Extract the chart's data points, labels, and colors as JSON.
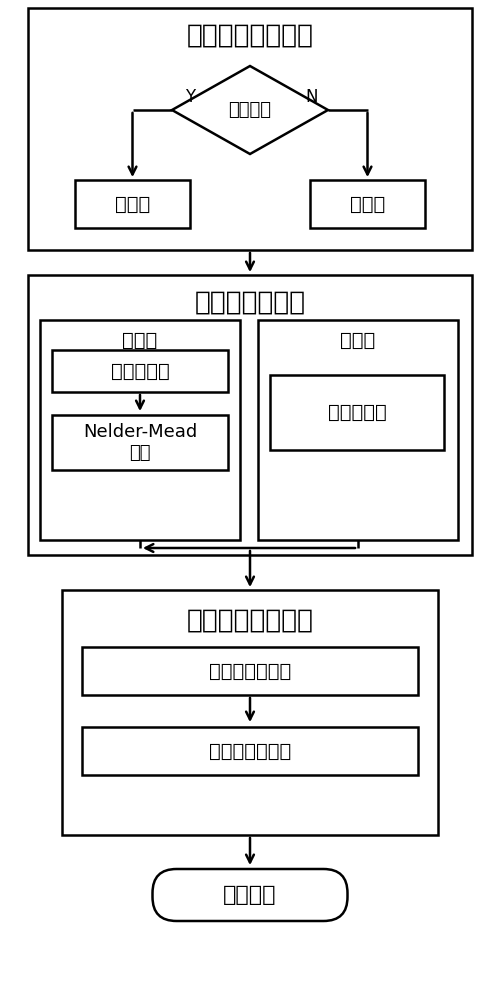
{
  "bg_color": "#ffffff",
  "line_color": "#000000",
  "text_color": "#000000",
  "block1_title": "导航解算模式选取",
  "diamond_label": "模式判据",
  "mode1_label": "模式一",
  "mode2_label": "模式二",
  "yes_label": "Y",
  "no_label": "N",
  "block2_title": "全局粗搜索算法",
  "mode1_sub_title": "模式一",
  "mode2_sub_title": "模式二",
  "sub1_box1": "二维二分法",
  "sub1_box2": "Nelder-Mead\n算法",
  "sub2_box1": "双矢量叉乘",
  "block3_title": "局部精确搜索算法",
  "sub3_box1": "构建导航方程组",
  "sub3_box2": "牛顿迭代法求解",
  "final_label": "导航结果"
}
